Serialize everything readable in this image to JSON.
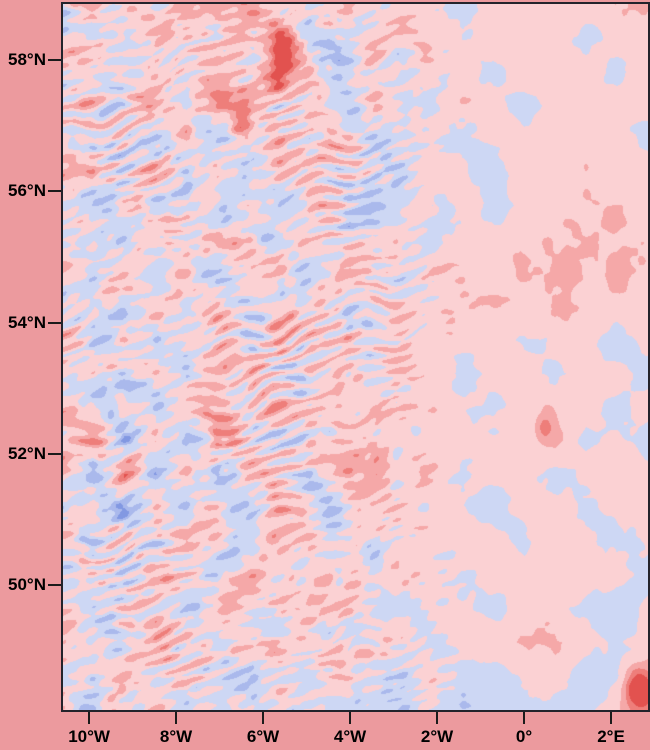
{
  "figure": {
    "background_color": "#ec9a9e",
    "border_color": "#23232b",
    "tick_color": "#1b1b1b",
    "label_color": "#000000"
  },
  "chart_data": {
    "type": "heatmap",
    "title": "",
    "xlabel": "",
    "ylabel": "",
    "legend": null,
    "grid_lines": false,
    "lon_range": [
      -10.6,
      2.85
    ],
    "lat_range": [
      48.1,
      58.85
    ],
    "x_ticks": [
      {
        "label": "10°W",
        "lon": -10
      },
      {
        "label": "8°W",
        "lon": -8
      },
      {
        "label": "6°W",
        "lon": -6
      },
      {
        "label": "4°W",
        "lon": -4
      },
      {
        "label": "2°W",
        "lon": -2
      },
      {
        "label": "0°",
        "lon": 0
      },
      {
        "label": "2°E",
        "lon": 2
      }
    ],
    "y_ticks": [
      {
        "label": "58°N",
        "lat": 58
      },
      {
        "label": "56°N",
        "lat": 56
      },
      {
        "label": "54°N",
        "lat": 54
      },
      {
        "label": "52°N",
        "lat": 52
      },
      {
        "label": "50°N",
        "lat": 50
      }
    ],
    "colormap": {
      "level_step": 0.25,
      "positive_levels": [
        "#fbd1d3",
        "#f5a8a8",
        "#ee7e7a",
        "#e2524f"
      ],
      "negative_levels": [
        "#cdd7f4",
        "#aab9ec",
        "#8298e2",
        "#5b74d6"
      ]
    },
    "base_grid": {
      "cols": 20,
      "rows": 22,
      "north_to_south": true,
      "values": [
        [
          -0.15,
          0.2,
          0.2,
          0.25,
          0.2,
          0.3,
          0.25,
          0.2,
          -0.12,
          0.18,
          -0.15,
          0.18,
          0.15,
          -0.1,
          0.18,
          0.15,
          0.12,
          0.18,
          0.2,
          0.22
        ],
        [
          0.18,
          0.1,
          -0.12,
          0.22,
          0.3,
          -0.2,
          0.3,
          0.45,
          -0.2,
          -0.15,
          0.15,
          0.2,
          0.12,
          -0.1,
          0.18,
          0.12,
          0.1,
          -0.12,
          0.15,
          0.2
        ],
        [
          0.15,
          -0.1,
          0.15,
          0.25,
          -0.2,
          0.3,
          -0.15,
          0.4,
          0.2,
          -0.2,
          0.1,
          -0.15,
          0.18,
          0.1,
          -0.15,
          0.18,
          0.1,
          0.15,
          -0.1,
          0.15
        ],
        [
          0.2,
          0.1,
          -0.15,
          0.3,
          -0.25,
          0.35,
          0.4,
          -0.2,
          0.25,
          -0.15,
          0.15,
          0.1,
          -0.1,
          0.15,
          0.18,
          -0.1,
          0.15,
          0.1,
          0.18,
          0.15
        ],
        [
          0.15,
          -0.15,
          0.25,
          -0.2,
          0.3,
          -0.2,
          0.25,
          0.15,
          -0.2,
          0.15,
          -0.15,
          0.1,
          0.15,
          -0.1,
          0.1,
          0.15,
          0.2,
          0.15,
          0.1,
          -0.1
        ],
        [
          0.1,
          0.2,
          -0.2,
          0.3,
          -0.25,
          0.25,
          -0.15,
          0.2,
          0.15,
          -0.15,
          0.1,
          -0.1,
          0.15,
          0.1,
          -0.15,
          0.1,
          0.2,
          0.25,
          0.15,
          0.1
        ],
        [
          0.15,
          -0.2,
          0.25,
          -0.2,
          0.25,
          -0.2,
          0.2,
          -0.15,
          0.1,
          0.15,
          -0.15,
          0.1,
          -0.1,
          0.15,
          -0.1,
          0.1,
          0.15,
          0.2,
          0.25,
          0.2
        ],
        [
          0.1,
          0.2,
          -0.25,
          0.3,
          -0.2,
          0.2,
          0.15,
          -0.15,
          0.2,
          -0.1,
          0.15,
          0.1,
          -0.15,
          0.1,
          0.15,
          0.2,
          0.25,
          0.3,
          0.25,
          0.2
        ],
        [
          0.15,
          -0.2,
          0.3,
          -0.25,
          0.25,
          -0.15,
          0.2,
          0.1,
          -0.15,
          0.15,
          0.1,
          -0.1,
          0.15,
          0.2,
          0.1,
          0.25,
          0.3,
          0.25,
          0.3,
          0.25
        ],
        [
          0.1,
          0.2,
          -0.3,
          0.25,
          -0.2,
          0.2,
          -0.15,
          0.15,
          0.2,
          -0.1,
          0.15,
          0.2,
          0.1,
          0.15,
          0.25,
          0.2,
          0.25,
          0.2,
          0.15,
          0.2
        ],
        [
          0.15,
          -0.35,
          0.3,
          -0.3,
          0.25,
          0.15,
          -0.15,
          0.2,
          0.15,
          0.2,
          -0.1,
          0.15,
          0.2,
          0.15,
          0.1,
          -0.1,
          0.15,
          0.1,
          -0.15,
          0.1
        ],
        [
          0.1,
          0.25,
          -0.3,
          0.3,
          -0.2,
          0.2,
          0.15,
          -0.1,
          0.2,
          0.15,
          0.1,
          0.2,
          0.15,
          -0.1,
          0.1,
          0.15,
          -0.15,
          0.1,
          0.15,
          -0.1
        ],
        [
          0.15,
          -0.2,
          0.25,
          -0.2,
          0.2,
          0.25,
          -0.15,
          0.2,
          0.1,
          0.2,
          0.15,
          0.1,
          0.2,
          0.15,
          -0.1,
          0.1,
          0.2,
          0.15,
          -0.1,
          0.1
        ],
        [
          0.1,
          0.5,
          -0.55,
          0.55,
          -0.5,
          0.4,
          0.2,
          -0.15,
          0.25,
          0.15,
          0.2,
          0.1,
          0.15,
          0.2,
          0.1,
          0.15,
          0.3,
          -0.1,
          0.1,
          -0.15
        ],
        [
          0.15,
          -0.6,
          0.6,
          -0.6,
          0.5,
          -0.35,
          0.25,
          0.2,
          -0.15,
          0.2,
          0.25,
          0.15,
          0.1,
          -0.1,
          0.15,
          0.1,
          -0.15,
          0.1,
          0.15,
          0.1
        ],
        [
          0.1,
          0.45,
          -0.5,
          0.45,
          -0.3,
          0.3,
          -0.2,
          0.25,
          0.15,
          -0.1,
          0.2,
          0.1,
          0.15,
          0.1,
          -0.15,
          0.1,
          0.1,
          -0.1,
          0.1,
          0.15
        ],
        [
          0.15,
          -0.2,
          0.25,
          -0.2,
          0.25,
          0.2,
          -0.15,
          0.2,
          0.25,
          0.15,
          -0.1,
          0.15,
          0.1,
          0.15,
          0.1,
          -0.1,
          0.15,
          0.1,
          -0.1,
          0.1
        ],
        [
          0.1,
          0.2,
          -0.2,
          0.25,
          0.2,
          -0.15,
          0.25,
          0.15,
          0.2,
          -0.1,
          0.15,
          0.2,
          0.1,
          -0.1,
          0.15,
          0.1,
          0.15,
          0.2,
          0.1,
          -0.1
        ],
        [
          0.15,
          -0.15,
          0.2,
          0.15,
          -0.2,
          0.2,
          0.15,
          -0.15,
          0.2,
          0.15,
          0.1,
          -0.15,
          0.1,
          0.15,
          -0.1,
          0.1,
          0.1,
          -0.1,
          -0.25,
          0.1
        ],
        [
          0.1,
          0.15,
          -0.2,
          0.25,
          0.15,
          -0.15,
          0.2,
          0.1,
          -0.2,
          0.15,
          0.1,
          0.15,
          -0.1,
          0.1,
          0.15,
          0.25,
          0.3,
          0.15,
          -0.1,
          0.1
        ],
        [
          0.15,
          -0.2,
          0.15,
          -0.15,
          0.2,
          0.1,
          -0.2,
          0.15,
          -0.15,
          0.1,
          -0.2,
          -0.15,
          0.1,
          -0.15,
          -0.1,
          0.15,
          0.2,
          -0.15,
          -0.1,
          0.3
        ],
        [
          0.1,
          -0.15,
          0.2,
          0.1,
          -0.15,
          -0.2,
          0.15,
          -0.1,
          -0.2,
          -0.25,
          -0.15,
          -0.2,
          -0.1,
          -0.15,
          -0.2,
          -0.1,
          -0.15,
          -0.1,
          0.15,
          0.5
        ]
      ]
    },
    "hotspots": [
      {
        "lon": -5.55,
        "lat": 58.15,
        "value": 0.85,
        "radius_deg": 0.18
      },
      {
        "lon": -5.7,
        "lat": 57.7,
        "value": 0.75,
        "radius_deg": 0.16
      },
      {
        "lon": -6.5,
        "lat": 57.0,
        "value": 0.6,
        "radius_deg": 0.14
      },
      {
        "lon": -6.0,
        "lat": 55.3,
        "value": -0.55,
        "radius_deg": 0.12
      },
      {
        "lon": 0.48,
        "lat": 52.4,
        "value": 0.5,
        "radius_deg": 0.12
      },
      {
        "lon": 2.6,
        "lat": 48.45,
        "value": 0.95,
        "radius_deg": 0.2
      }
    ]
  }
}
